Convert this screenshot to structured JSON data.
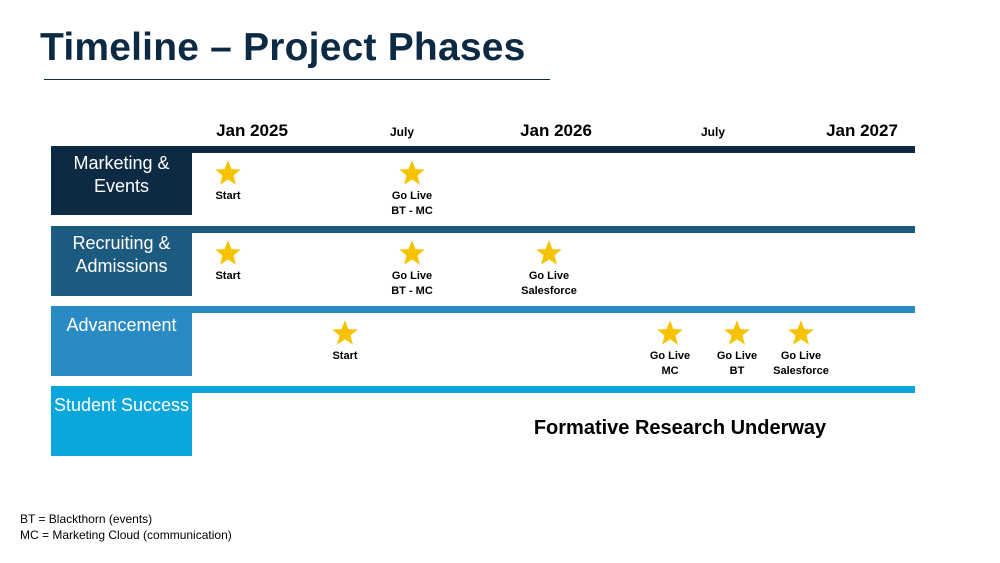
{
  "title": "Timeline – Project Phases",
  "axis": [
    {
      "label": "Jan 2025",
      "type": "major"
    },
    {
      "label": "July",
      "type": "minor"
    },
    {
      "label": "Jan 2026",
      "type": "major"
    },
    {
      "label": "July",
      "type": "minor"
    },
    {
      "label": "Jan 2027",
      "type": "major"
    }
  ],
  "rows": [
    {
      "name": "Marketing & Events",
      "color": "#0d2a45",
      "milestones": [
        {
          "label": "Start",
          "sub": ""
        },
        {
          "label": "Go Live",
          "sub": "BT - MC"
        }
      ]
    },
    {
      "name": "Recruiting & Admissions",
      "color": "#1c5a80",
      "milestones": [
        {
          "label": "Start",
          "sub": ""
        },
        {
          "label": "Go Live",
          "sub": "BT - MC"
        },
        {
          "label": "Go Live",
          "sub": "Salesforce"
        }
      ]
    },
    {
      "name": "Advancement",
      "color": "#2a8bc4",
      "milestones": [
        {
          "label": "Start",
          "sub": ""
        },
        {
          "label": "Go Live",
          "sub": "MC"
        },
        {
          "label": "Go Live",
          "sub": "BT"
        },
        {
          "label": "Go Live",
          "sub": "Salesforce"
        }
      ]
    },
    {
      "name": "Student Success",
      "color": "#0ba7dc",
      "note": "Formative Research Underway"
    }
  ],
  "legend": [
    "BT = Blackthorn (events)",
    "MC = Marketing Cloud (communication)"
  ],
  "star_color": "#f7c300"
}
